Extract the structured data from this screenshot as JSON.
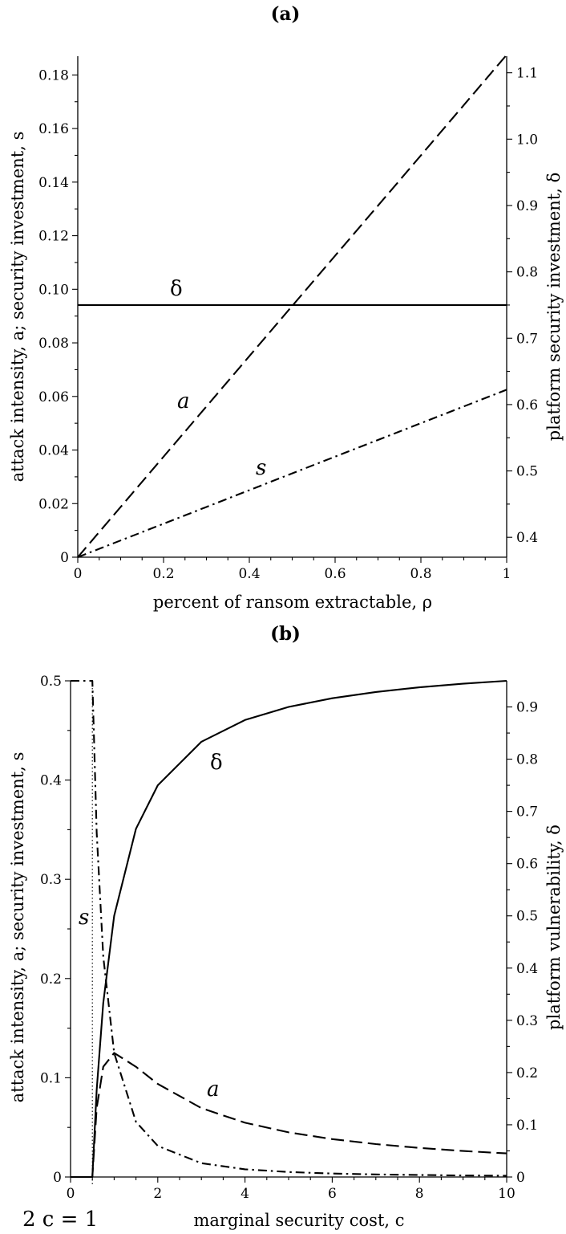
{
  "chart_data": [
    {
      "panel_label": "(a)",
      "type": "line",
      "xlabel": "percent of ransom extractable, ρ",
      "ylabel": "attack intensity, a; security investment, s",
      "y2label": "platform security investment, δ",
      "xlim": [
        0,
        1
      ],
      "ylim": [
        0,
        0.187
      ],
      "y2lim": [
        0.37,
        1.125
      ],
      "xticks": [
        "0",
        "0.2",
        "0.4",
        "0.6",
        "0.8",
        "1"
      ],
      "yticks": [
        "0",
        "0.02",
        "0.04",
        "0.06",
        "0.08",
        "0.10",
        "0.12",
        "0.14",
        "0.16",
        "0.18"
      ],
      "y2ticks": [
        "0.4",
        "0.5",
        "0.6",
        "0.7",
        "0.8",
        "0.9",
        "1.0",
        "1.1"
      ],
      "grid": false,
      "series": [
        {
          "name": "a",
          "style": "dashed",
          "axis": "left",
          "x": [
            0,
            0.25,
            0.5,
            0.75,
            1
          ],
          "y": [
            0,
            0.0469,
            0.0938,
            0.1406,
            0.1875
          ]
        },
        {
          "name": "s",
          "style": "dashdot",
          "axis": "left",
          "x": [
            0,
            0.25,
            0.5,
            0.75,
            1
          ],
          "y": [
            0,
            0.0156,
            0.0313,
            0.0469,
            0.0625
          ]
        },
        {
          "name": "δ",
          "style": "solid",
          "axis": "right",
          "x": [
            0,
            0.25,
            0.5,
            0.75,
            1
          ],
          "y": [
            0.75,
            0.75,
            0.75,
            0.75,
            0.75
          ]
        }
      ]
    },
    {
      "panel_label": "(b)",
      "type": "line",
      "xlabel": "marginal security cost, c",
      "ylabel": "attack intensity, a; security investment, s",
      "y2label": "platform vulnerability, δ",
      "xlim": [
        0,
        10
      ],
      "ylim": [
        0,
        0.5
      ],
      "y2lim": [
        0,
        0.95
      ],
      "xticks": [
        "0",
        "2",
        "4",
        "6",
        "8",
        "10"
      ],
      "yticks": [
        "0",
        "0.1",
        "0.2",
        "0.3",
        "0.4",
        "0.5"
      ],
      "y2ticks": [
        "0",
        "0.1",
        "0.2",
        "0.3",
        "0.4",
        "0.5",
        "0.6",
        "0.7",
        "0.8",
        "0.9"
      ],
      "grid": false,
      "annotation": "2 c = 1",
      "threshold_c": 0.5,
      "series": [
        {
          "name": "a",
          "style": "dashed",
          "axis": "left",
          "x": [
            0,
            0.5,
            0.6,
            0.75,
            1,
            1.5,
            2,
            3,
            4,
            5,
            6,
            7,
            8,
            9,
            10
          ],
          "y": [
            0,
            0,
            0.0694,
            0.1111,
            0.125,
            0.1111,
            0.0938,
            0.0694,
            0.0547,
            0.045,
            0.0382,
            0.0332,
            0.0293,
            0.0262,
            0.0238
          ]
        },
        {
          "name": "s",
          "style": "dashdot",
          "axis": "left",
          "x": [
            0,
            0.5,
            0.6,
            0.75,
            1,
            1.5,
            2,
            3,
            4,
            5,
            6,
            7,
            8,
            9,
            10
          ],
          "y": [
            0.5,
            0.5,
            0.3472,
            0.2222,
            0.125,
            0.0556,
            0.0313,
            0.0139,
            0.0078,
            0.005,
            0.0035,
            0.0026,
            0.002,
            0.0015,
            0.0013
          ]
        },
        {
          "name": "δ",
          "style": "solid",
          "axis": "right",
          "x": [
            0,
            0.5,
            0.6,
            0.75,
            1,
            1.5,
            2,
            3,
            4,
            5,
            6,
            7,
            8,
            9,
            10
          ],
          "y": [
            0,
            0,
            0.1667,
            0.3333,
            0.5,
            0.6667,
            0.75,
            0.8333,
            0.875,
            0.9,
            0.9167,
            0.9286,
            0.9375,
            0.9444,
            0.95
          ]
        }
      ]
    }
  ]
}
